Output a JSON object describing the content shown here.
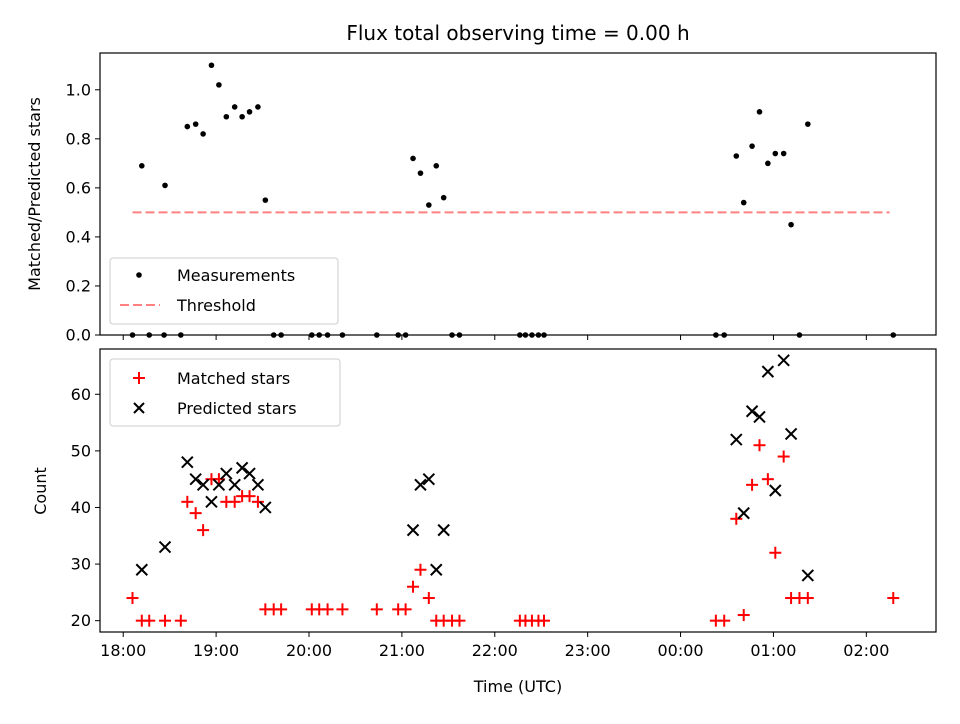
{
  "chart_data": [
    {
      "type": "scatter",
      "title": "Flux total observing time = 0.00 h",
      "xlabel": "",
      "ylabel": "Matched/Predicted stars",
      "xlim": [
        17.75,
        26.75
      ],
      "ylim": [
        0.0,
        1.15
      ],
      "yticks": [
        0.0,
        0.2,
        0.4,
        0.6,
        0.8,
        1.0
      ],
      "ytick_labels": [
        "0.0",
        "0.2",
        "0.4",
        "0.6",
        "0.8",
        "1.0"
      ],
      "xticks": [
        18,
        19,
        20,
        21,
        22,
        23,
        24,
        25,
        26
      ],
      "grid": false,
      "legend_position": "lower-left",
      "series": [
        {
          "name": "Measurements",
          "marker": "dot",
          "color": "#000000",
          "points": [
            [
              18.1,
              0.0
            ],
            [
              18.2,
              0.69
            ],
            [
              18.28,
              0.0
            ],
            [
              18.45,
              0.61
            ],
            [
              18.44,
              0.0
            ],
            [
              18.62,
              0.0
            ],
            [
              18.69,
              0.85
            ],
            [
              18.78,
              0.86
            ],
            [
              18.86,
              0.82
            ],
            [
              18.95,
              1.1
            ],
            [
              19.03,
              1.02
            ],
            [
              19.11,
              0.89
            ],
            [
              19.2,
              0.93
            ],
            [
              19.28,
              0.89
            ],
            [
              19.36,
              0.91
            ],
            [
              19.45,
              0.93
            ],
            [
              19.53,
              0.55
            ],
            [
              19.62,
              0.0
            ],
            [
              19.7,
              0.0
            ],
            [
              20.03,
              0.0
            ],
            [
              20.11,
              0.0
            ],
            [
              20.2,
              0.0
            ],
            [
              20.36,
              0.0
            ],
            [
              20.73,
              0.0
            ],
            [
              20.96,
              0.0
            ],
            [
              21.04,
              0.0
            ],
            [
              21.12,
              0.72
            ],
            [
              21.2,
              0.66
            ],
            [
              21.29,
              0.53
            ],
            [
              21.37,
              0.69
            ],
            [
              21.45,
              0.56
            ],
            [
              21.54,
              0.0
            ],
            [
              21.62,
              0.0
            ],
            [
              22.27,
              0.0
            ],
            [
              22.33,
              0.0
            ],
            [
              22.4,
              0.0
            ],
            [
              22.47,
              0.0
            ],
            [
              22.53,
              0.0
            ],
            [
              24.38,
              0.0
            ],
            [
              24.47,
              0.0
            ],
            [
              24.6,
              0.73
            ],
            [
              24.68,
              0.54
            ],
            [
              24.77,
              0.77
            ],
            [
              24.85,
              0.91
            ],
            [
              24.94,
              0.7
            ],
            [
              25.02,
              0.74
            ],
            [
              25.11,
              0.74
            ],
            [
              25.19,
              0.45
            ],
            [
              25.28,
              0.0
            ],
            [
              25.37,
              0.86
            ],
            [
              26.29,
              0.0
            ]
          ]
        },
        {
          "name": "Threshold",
          "style": "dashed-line",
          "color": "#ff8080",
          "x": [
            18.1,
            26.25
          ],
          "y": [
            0.5,
            0.5
          ]
        }
      ]
    },
    {
      "type": "scatter",
      "title": "",
      "xlabel": "Time (UTC)",
      "ylabel": "Count",
      "xlim": [
        17.75,
        26.75
      ],
      "ylim": [
        18,
        68
      ],
      "yticks": [
        20,
        30,
        40,
        50,
        60
      ],
      "ytick_labels": [
        "20",
        "30",
        "40",
        "50",
        "60"
      ],
      "xticks": [
        18,
        19,
        20,
        21,
        22,
        23,
        24,
        25,
        26
      ],
      "xtick_labels": [
        "18:00",
        "19:00",
        "20:00",
        "21:00",
        "22:00",
        "23:00",
        "00:00",
        "01:00",
        "02:00"
      ],
      "grid": false,
      "legend_position": "upper-left",
      "series": [
        {
          "name": "Matched stars",
          "marker": "plus",
          "color": "#ff0000",
          "points": [
            [
              18.1,
              24
            ],
            [
              18.2,
              20
            ],
            [
              18.28,
              20
            ],
            [
              18.45,
              20
            ],
            [
              18.62,
              20
            ],
            [
              18.69,
              41
            ],
            [
              18.78,
              39
            ],
            [
              18.86,
              36
            ],
            [
              18.95,
              45
            ],
            [
              19.03,
              45
            ],
            [
              19.11,
              41
            ],
            [
              19.2,
              41
            ],
            [
              19.28,
              42
            ],
            [
              19.36,
              42
            ],
            [
              19.45,
              41
            ],
            [
              19.53,
              22
            ],
            [
              19.62,
              22
            ],
            [
              19.7,
              22
            ],
            [
              20.03,
              22
            ],
            [
              20.11,
              22
            ],
            [
              20.2,
              22
            ],
            [
              20.36,
              22
            ],
            [
              20.73,
              22
            ],
            [
              20.96,
              22
            ],
            [
              21.04,
              22
            ],
            [
              21.12,
              26
            ],
            [
              21.2,
              29
            ],
            [
              21.29,
              24
            ],
            [
              21.37,
              20
            ],
            [
              21.45,
              20
            ],
            [
              21.54,
              20
            ],
            [
              21.62,
              20
            ],
            [
              22.27,
              20
            ],
            [
              22.33,
              20
            ],
            [
              22.4,
              20
            ],
            [
              22.47,
              20
            ],
            [
              22.53,
              20
            ],
            [
              24.38,
              20
            ],
            [
              24.47,
              20
            ],
            [
              24.6,
              38
            ],
            [
              24.68,
              21
            ],
            [
              24.77,
              44
            ],
            [
              24.85,
              51
            ],
            [
              24.94,
              45
            ],
            [
              25.02,
              32
            ],
            [
              25.11,
              49
            ],
            [
              25.19,
              24
            ],
            [
              25.28,
              24
            ],
            [
              25.37,
              24
            ],
            [
              26.29,
              24
            ]
          ]
        },
        {
          "name": "Predicted stars",
          "marker": "x",
          "color": "#000000",
          "points": [
            [
              18.2,
              29
            ],
            [
              18.45,
              33
            ],
            [
              18.69,
              48
            ],
            [
              18.78,
              45
            ],
            [
              18.86,
              44
            ],
            [
              18.95,
              41
            ],
            [
              19.03,
              44
            ],
            [
              19.11,
              46
            ],
            [
              19.2,
              44
            ],
            [
              19.28,
              47
            ],
            [
              19.36,
              46
            ],
            [
              19.45,
              44
            ],
            [
              19.53,
              40
            ],
            [
              21.12,
              36
            ],
            [
              21.2,
              44
            ],
            [
              21.29,
              45
            ],
            [
              21.37,
              29
            ],
            [
              21.45,
              36
            ],
            [
              24.6,
              52
            ],
            [
              24.68,
              39
            ],
            [
              24.77,
              57
            ],
            [
              24.85,
              56
            ],
            [
              24.94,
              64
            ],
            [
              25.02,
              43
            ],
            [
              25.11,
              66
            ],
            [
              25.19,
              53
            ],
            [
              25.37,
              28
            ]
          ]
        }
      ]
    }
  ]
}
